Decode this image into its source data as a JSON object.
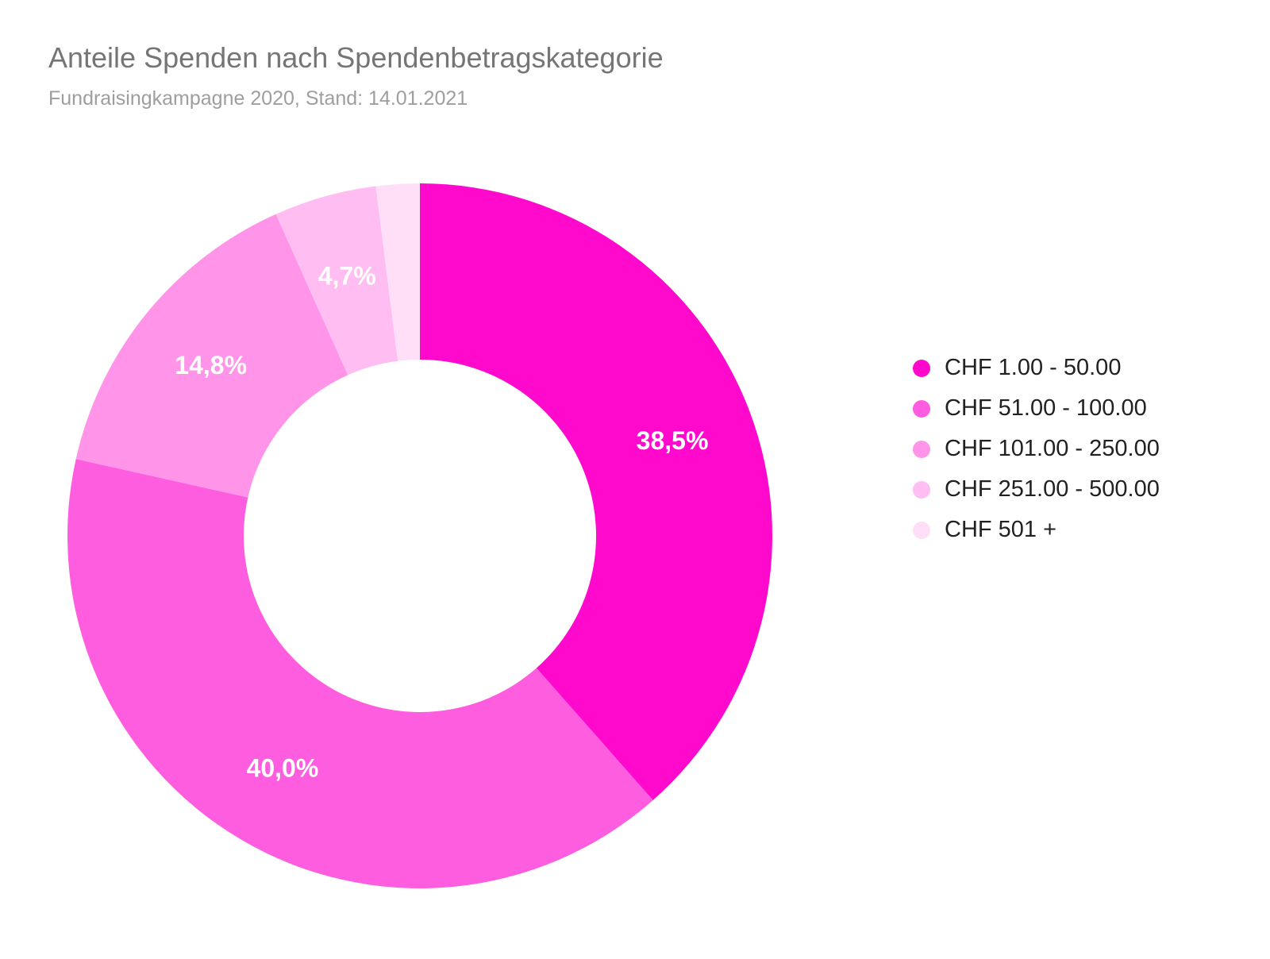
{
  "chart_data": {
    "type": "pie",
    "donut": true,
    "title": "Anteile Spenden nach Spendenbetragskategorie",
    "subtitle": "Fundraisingkampagne 2020, Stand: 14.01.2021",
    "legend_position": "right",
    "slices": [
      {
        "label": "CHF 1.00 - 50.00",
        "value": 38.5,
        "display": "38,5%",
        "color": "#ff09cc"
      },
      {
        "label": "CHF 51.00 - 100.00",
        "value": 40.0,
        "display": "40,0%",
        "color": "#ff5ddf"
      },
      {
        "label": "CHF 101.00 - 250.00",
        "value": 14.8,
        "display": "14,8%",
        "color": "#ff94e9"
      },
      {
        "label": "CHF 251.00 - 500.00",
        "value": 4.7,
        "display": "4,7%",
        "color": "#ffbdf2"
      },
      {
        "label": "CHF 501 +",
        "value": 2.0,
        "display": "",
        "color": "#ffdff8"
      }
    ]
  }
}
